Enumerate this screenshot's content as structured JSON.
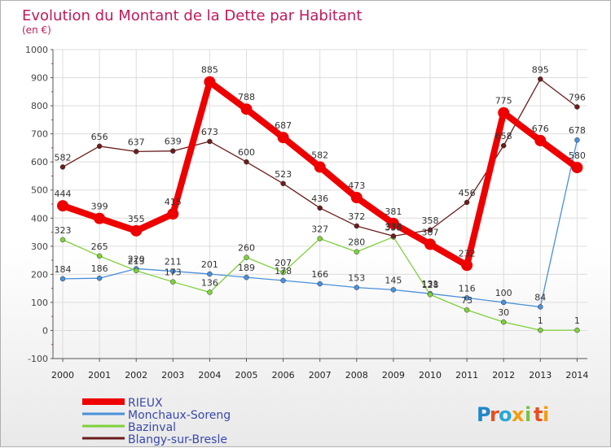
{
  "chart_data": {
    "type": "line",
    "title": "Evolution du Montant de la Dette par Habitant",
    "subtitle": "(en €)",
    "x": [
      "2000",
      "2001",
      "2002",
      "2003",
      "2004",
      "2005",
      "2006",
      "2007",
      "2008",
      "2009",
      "2010",
      "2011",
      "2012",
      "2013",
      "2014"
    ],
    "ylim": [
      -100,
      1000
    ],
    "yticks": [
      "-100",
      "0",
      "100",
      "200",
      "300",
      "400",
      "500",
      "600",
      "700",
      "800",
      "900",
      "1000"
    ],
    "grid": true,
    "legend_position": "bottom-left",
    "title_color": "#c2185b",
    "series": [
      {
        "name": "RIEUX",
        "color": "#ee0000",
        "thick": true,
        "values": [
          444,
          399,
          355,
          415,
          885,
          788,
          687,
          582,
          473,
          381,
          307,
          232,
          775,
          676,
          580
        ],
        "labels": [
          "444",
          "399",
          "355",
          "415",
          "885",
          "788",
          "687",
          "582",
          "473",
          "381",
          "307",
          "232",
          "775",
          "676",
          "580"
        ]
      },
      {
        "name": "Monchaux-Soreng",
        "color": "#4a90d9",
        "values": [
          184,
          186,
          220,
          211,
          201,
          189,
          178,
          166,
          153,
          145,
          131,
          116,
          100,
          84,
          678
        ],
        "labels": [
          "184",
          "186",
          "220",
          "211",
          "201",
          "189",
          "178",
          "166",
          "153",
          "145",
          "131",
          "116",
          "100",
          "84",
          "678"
        ]
      },
      {
        "name": "Bazinval",
        "color": "#7ed13a",
        "values": [
          323,
          265,
          213,
          173,
          136,
          260,
          207,
          327,
          280,
          333,
          128,
          73,
          30,
          1,
          1
        ],
        "labels": [
          "323",
          "265",
          "213",
          "173",
          "136",
          "260",
          "207",
          "327",
          "280",
          "333",
          "128",
          "73",
          "30",
          "1",
          "1"
        ]
      },
      {
        "name": "Blangy-sur-Bresle",
        "color": "#6b1c1c",
        "values": [
          582,
          656,
          637,
          639,
          673,
          600,
          523,
          436,
          372,
          336,
          358,
          456,
          658,
          895,
          796
        ],
        "labels": [
          "582",
          "656",
          "637",
          "639",
          "673",
          "600",
          "523",
          "436",
          "372",
          "336",
          "358",
          "456",
          "658",
          "895",
          "796"
        ]
      }
    ]
  },
  "brand": {
    "logo_text": "Proxiti",
    "letters": [
      "P",
      "r",
      "o",
      "x",
      "i",
      "t",
      "i"
    ],
    "letter_colors": [
      "#1e88c7",
      "#e94f1d",
      "#2aa8d8",
      "#f39c12",
      "#7cc242",
      "#e94f1d",
      "#f39c12"
    ]
  }
}
